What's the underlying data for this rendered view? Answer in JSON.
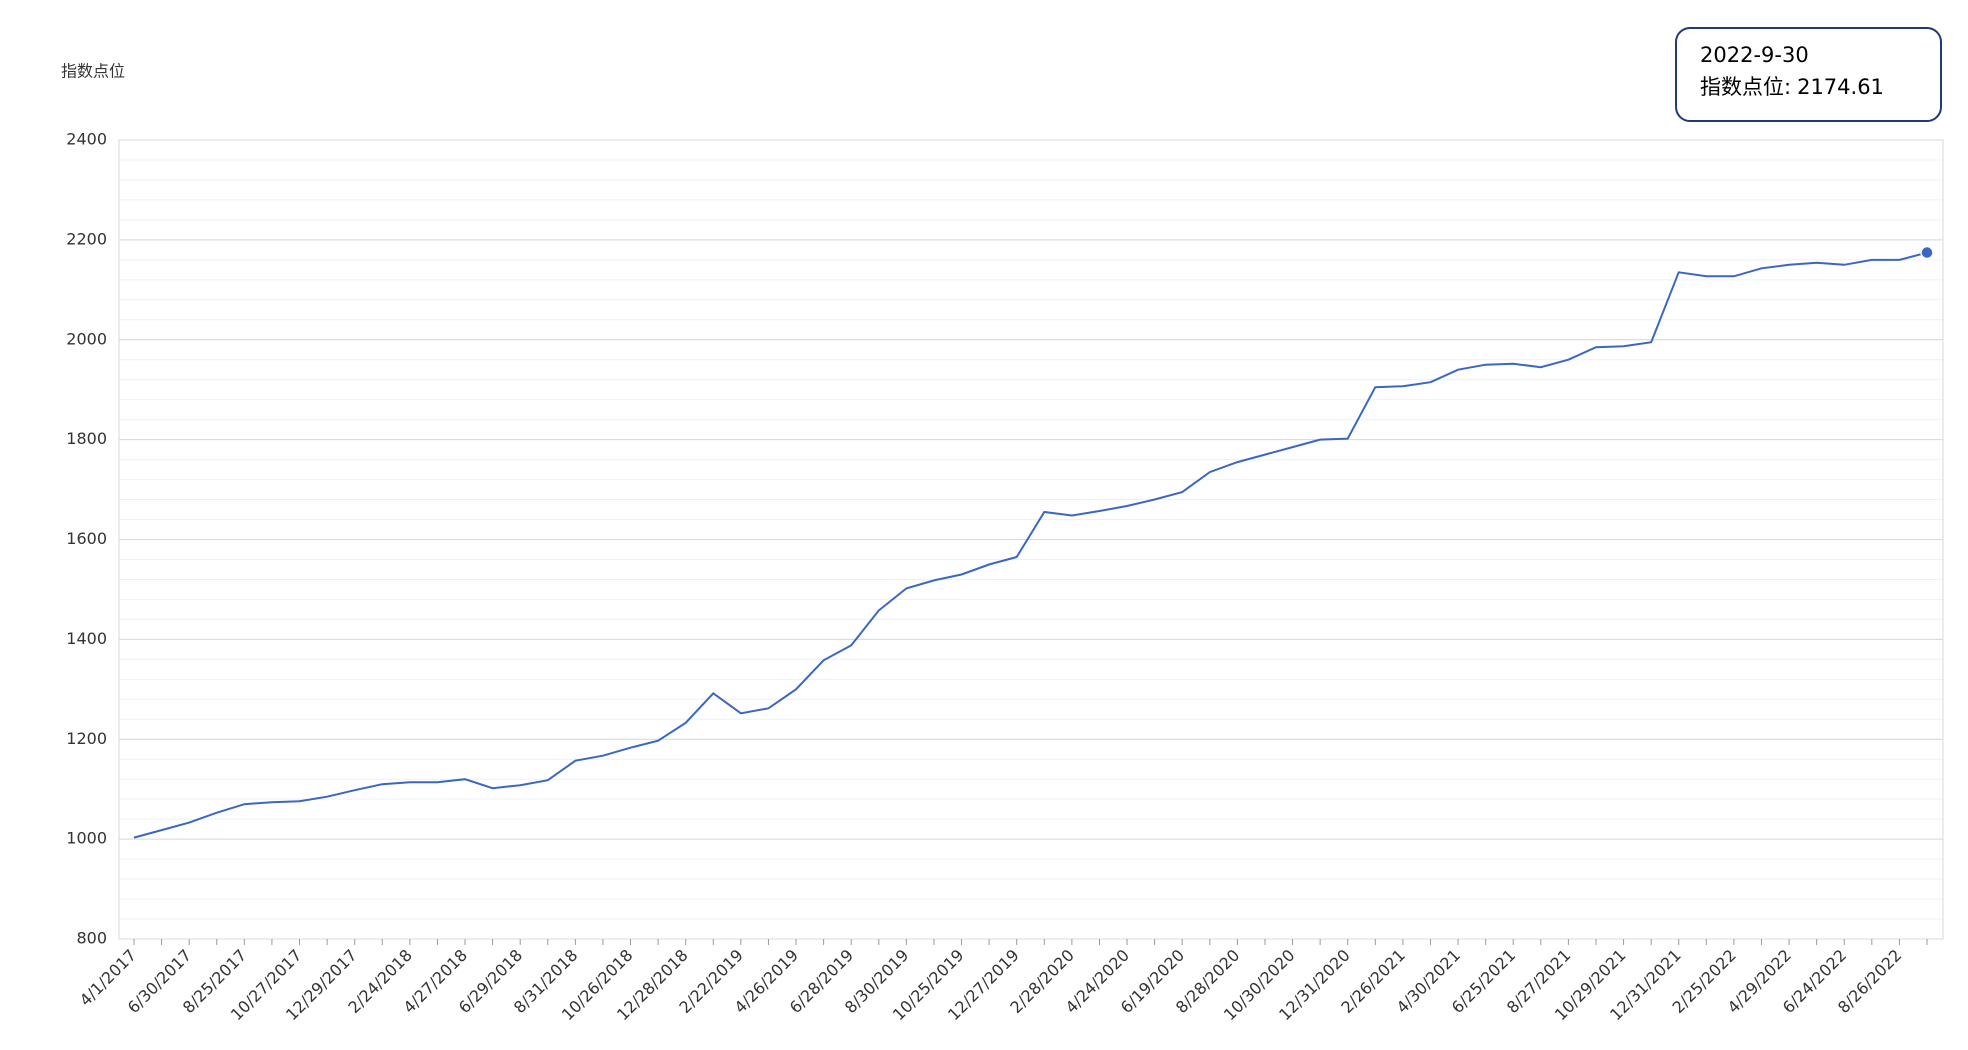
{
  "chart_data": {
    "type": "line",
    "y_axis_label": "指数点位",
    "categories": [
      "4/1/2017",
      null,
      "6/30/2017",
      null,
      "8/25/2017",
      null,
      "10/27/2017",
      null,
      "12/29/2017",
      null,
      "2/24/2018",
      null,
      "4/27/2018",
      null,
      "6/29/2018",
      null,
      "8/31/2018",
      null,
      "10/26/2018",
      null,
      "12/28/2018",
      null,
      "2/22/2019",
      null,
      "4/26/2019",
      null,
      "6/28/2019",
      null,
      "8/30/2019",
      null,
      "10/25/2019",
      null,
      "12/27/2019",
      null,
      "2/28/2020",
      null,
      "4/24/2020",
      null,
      "6/19/2020",
      null,
      "8/28/2020",
      null,
      "10/30/2020",
      null,
      "12/31/2020",
      null,
      "2/26/2021",
      null,
      "4/30/2021",
      null,
      "6/25/2021",
      null,
      "8/27/2021",
      null,
      "10/29/2021",
      null,
      "12/31/2021",
      null,
      "2/25/2022",
      null,
      "4/29/2022",
      null,
      "6/24/2022",
      null,
      "8/26/2022",
      null
    ],
    "series": [
      {
        "name": "指数点位",
        "color": "#3a66c4",
        "values": [
          1003,
          1018,
          1033,
          1053,
          1070,
          1074,
          1076,
          1085,
          1098,
          1110,
          1114,
          1114,
          1120,
          1102,
          1108,
          1118,
          1157,
          1167,
          1183,
          1197,
          1233,
          1292,
          1252,
          1262,
          1300,
          1358,
          1388,
          1458,
          1502,
          1518,
          1530,
          1550,
          1565,
          1655,
          1648,
          1657,
          1667,
          1680,
          1695,
          1735,
          1755,
          1770,
          1785,
          1800,
          1802,
          1905,
          1907,
          1915,
          1940,
          1950,
          1952,
          1945,
          1960,
          1985,
          1987,
          1995,
          2135,
          2127,
          2127,
          2143,
          2150,
          2154,
          2150,
          2160,
          2160,
          2174.61
        ]
      }
    ],
    "ylim": [
      800,
      2400
    ],
    "yticks": [
      800,
      1000,
      1200,
      1400,
      1600,
      1800,
      2000,
      2200,
      2400
    ],
    "grid": true,
    "minor_grid": 40,
    "tooltip": {
      "title": "2022-9-30",
      "label": "指数点位:",
      "point": 65
    }
  }
}
